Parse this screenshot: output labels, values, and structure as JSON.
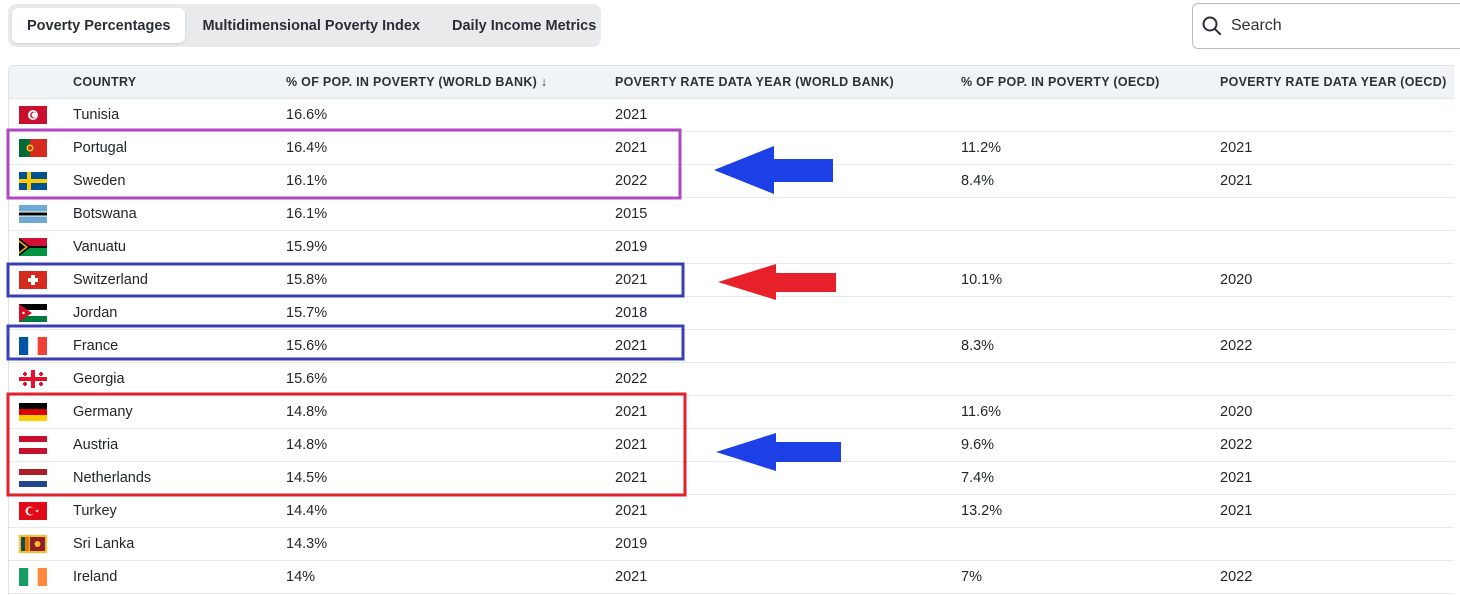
{
  "tabs": [
    {
      "label": "Poverty Percentages",
      "active": true
    },
    {
      "label": "Multidimensional Poverty Index",
      "active": false
    },
    {
      "label": "Daily Income Metrics",
      "active": false
    }
  ],
  "search": {
    "placeholder": "Search"
  },
  "table": {
    "headers": {
      "country": "COUNTRY",
      "wb_pct": "% OF POP. IN POVERTY (WORLD BANK) ↓",
      "wb_year": "POVERTY RATE DATA YEAR (WORLD BANK)",
      "oecd_pct": "% OF POP. IN POVERTY (OECD)",
      "oecd_year": "POVERTY RATE DATA YEAR (OECD)"
    },
    "rows": [
      {
        "country": "Tunisia",
        "flag": "tunisia-flag",
        "wb_pct": "16.6%",
        "wb_year": "2021",
        "oecd_pct": "",
        "oecd_year": ""
      },
      {
        "country": "Portugal",
        "flag": "portugal-flag",
        "wb_pct": "16.4%",
        "wb_year": "2021",
        "oecd_pct": "11.2%",
        "oecd_year": "2021"
      },
      {
        "country": "Sweden",
        "flag": "sweden-flag",
        "wb_pct": "16.1%",
        "wb_year": "2022",
        "oecd_pct": "8.4%",
        "oecd_year": "2021"
      },
      {
        "country": "Botswana",
        "flag": "botswana-flag",
        "wb_pct": "16.1%",
        "wb_year": "2015",
        "oecd_pct": "",
        "oecd_year": ""
      },
      {
        "country": "Vanuatu",
        "flag": "vanuatu-flag",
        "wb_pct": "15.9%",
        "wb_year": "2019",
        "oecd_pct": "",
        "oecd_year": ""
      },
      {
        "country": "Switzerland",
        "flag": "switzerland-flag",
        "wb_pct": "15.8%",
        "wb_year": "2021",
        "oecd_pct": "10.1%",
        "oecd_year": "2020"
      },
      {
        "country": "Jordan",
        "flag": "jordan-flag",
        "wb_pct": "15.7%",
        "wb_year": "2018",
        "oecd_pct": "",
        "oecd_year": ""
      },
      {
        "country": "France",
        "flag": "france-flag",
        "wb_pct": "15.6%",
        "wb_year": "2021",
        "oecd_pct": "8.3%",
        "oecd_year": "2022"
      },
      {
        "country": "Georgia",
        "flag": "georgia-flag",
        "wb_pct": "15.6%",
        "wb_year": "2022",
        "oecd_pct": "",
        "oecd_year": ""
      },
      {
        "country": "Germany",
        "flag": "germany-flag",
        "wb_pct": "14.8%",
        "wb_year": "2021",
        "oecd_pct": "11.6%",
        "oecd_year": "2020"
      },
      {
        "country": "Austria",
        "flag": "austria-flag",
        "wb_pct": "14.8%",
        "wb_year": "2021",
        "oecd_pct": "9.6%",
        "oecd_year": "2022"
      },
      {
        "country": "Netherlands",
        "flag": "netherlands-flag",
        "wb_pct": "14.5%",
        "wb_year": "2021",
        "oecd_pct": "7.4%",
        "oecd_year": "2021"
      },
      {
        "country": "Turkey",
        "flag": "turkey-flag",
        "wb_pct": "14.4%",
        "wb_year": "2021",
        "oecd_pct": "13.2%",
        "oecd_year": "2021"
      },
      {
        "country": "Sri Lanka",
        "flag": "sri-lanka-flag",
        "wb_pct": "14.3%",
        "wb_year": "2019",
        "oecd_pct": "",
        "oecd_year": ""
      },
      {
        "country": "Ireland",
        "flag": "ireland-flag",
        "wb_pct": "14%",
        "wb_year": "2021",
        "oecd_pct": "7%",
        "oecd_year": "2022"
      }
    ]
  },
  "annotations": {
    "boxes": [
      {
        "name": "highlight-box-portugal-sweden",
        "color": "#b347c2"
      },
      {
        "name": "highlight-box-switzerland",
        "color": "#3a3fb5"
      },
      {
        "name": "highlight-box-france",
        "color": "#3a3fb5"
      },
      {
        "name": "highlight-box-germany-netherlands",
        "color": "#e0222c"
      }
    ],
    "arrows": [
      {
        "name": "arrow-portugal-sweden",
        "color": "#1d3fe6"
      },
      {
        "name": "arrow-switzerland",
        "color": "#e8202a"
      },
      {
        "name": "arrow-germany-netherlands",
        "color": "#1d3fe6"
      }
    ]
  }
}
